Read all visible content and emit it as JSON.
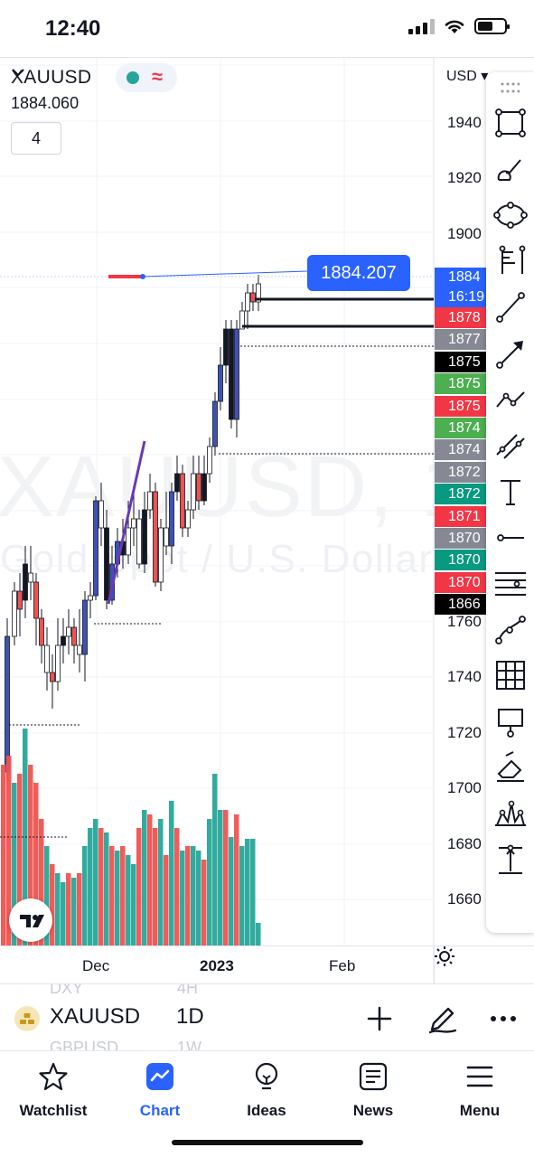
{
  "status_bar": {
    "time": "12:40"
  },
  "chart": {
    "symbol": "XAUUSD",
    "last_price": "1884.060",
    "indicator_count": "4",
    "watermark_symbol": "XAUUSD, 1D",
    "watermark_desc": "Gold Spot / U.S. Dollar",
    "currency": "USD",
    "price_flag": "1884.207",
    "axis_labels": [
      "1940",
      "1920",
      "1900",
      "1760",
      "1740",
      "1720",
      "1700",
      "1680",
      "1660"
    ],
    "price_tags": [
      {
        "text": "1884",
        "sub": "16:19",
        "color": "#2962ff"
      },
      {
        "text": "1878",
        "color": "#f23645"
      },
      {
        "text": "1877",
        "color": "#868993"
      },
      {
        "text": "1875",
        "color": "#000000"
      },
      {
        "text": "1875",
        "color": "#4caf50"
      },
      {
        "text": "1875",
        "color": "#f23645"
      },
      {
        "text": "1874",
        "color": "#4caf50"
      },
      {
        "text": "1874",
        "color": "#868993"
      },
      {
        "text": "1872",
        "color": "#868993"
      },
      {
        "text": "1872",
        "color": "#089981"
      },
      {
        "text": "1871",
        "color": "#f23645"
      },
      {
        "text": "1870",
        "color": "#868993"
      },
      {
        "text": "1870",
        "color": "#089981"
      },
      {
        "text": "1870",
        "color": "#f23645"
      },
      {
        "text": "1866",
        "color": "#000000"
      }
    ],
    "time_labels": [
      "Dec",
      "2023",
      "Feb"
    ],
    "colors": {
      "up": "#26a69a",
      "down": "#ef5350",
      "accent": "#2962ff",
      "trend": "#673ab7"
    }
  },
  "drawing_tools": [
    "rectangle-icon",
    "brush-icon",
    "ellipse-icon",
    "fib-icon",
    "trend-line-icon",
    "arrow-icon",
    "path-icon",
    "parallel-channel-icon",
    "text-icon",
    "horizontal-ray-icon",
    "horizontal-lines-icon",
    "curve-icon",
    "grid-icon",
    "callout-icon",
    "eraser-icon",
    "pattern-icon",
    "price-range-icon"
  ],
  "symbol_bar": {
    "symbol": "XAUUSD",
    "interval": "1D",
    "ghost_above_symbol": "DXY",
    "ghost_above_interval": "4H",
    "ghost_below_symbol": "GBPUSD",
    "ghost_below_interval": "1W"
  },
  "nav": {
    "items": [
      {
        "label": "Watchlist",
        "icon": "star-icon"
      },
      {
        "label": "Chart",
        "icon": "chart-icon"
      },
      {
        "label": "Ideas",
        "icon": "lightbulb-icon"
      },
      {
        "label": "News",
        "icon": "newspaper-icon"
      },
      {
        "label": "Menu",
        "icon": "hamburger-icon"
      }
    ],
    "active": "Chart"
  }
}
